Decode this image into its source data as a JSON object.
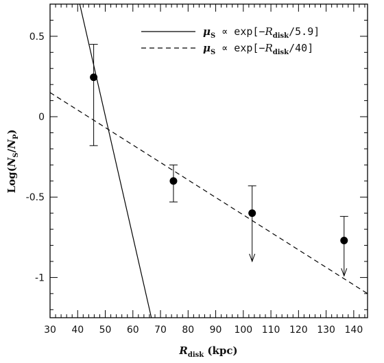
{
  "chart_data": {
    "type": "scatter",
    "xlabel": {
      "main": "R",
      "sub": "disk",
      "unit": " (kpc)"
    },
    "ylabel": {
      "pre": "Log(",
      "n1": "N",
      "s1": "S",
      "slash": "/",
      "n2": "N",
      "s2": "P",
      "post": ")"
    },
    "xlim": [
      30,
      145
    ],
    "ylim": [
      -1.25,
      0.7
    ],
    "xticks": [
      30,
      40,
      50,
      60,
      70,
      80,
      90,
      100,
      110,
      120,
      130,
      140
    ],
    "yticks": [
      0.5,
      0,
      -0.5,
      -1
    ],
    "ytick_labels": [
      "0.5",
      "0",
      "-0.5",
      "-1"
    ],
    "grid": false,
    "legend_position": "top-right",
    "points": [
      {
        "x": 45.8,
        "y": 0.245,
        "yerr_low": -0.18,
        "yerr_high": 0.45,
        "upper_limit": false
      },
      {
        "x": 74.7,
        "y": -0.4,
        "yerr_low": -0.53,
        "yerr_high": -0.3,
        "upper_limit": false
      },
      {
        "x": 103.2,
        "y": -0.6,
        "yerr_low": -0.9,
        "yerr_high": -0.43,
        "upper_limit": true
      },
      {
        "x": 136.5,
        "y": -0.77,
        "yerr_low": -0.99,
        "yerr_high": -0.62,
        "upper_limit": true
      }
    ],
    "series": [
      {
        "style": "solid",
        "x": [
          38.5,
          66.7
        ],
        "y": [
          0.87,
          -1.25
        ],
        "label": {
          "mu": "μ",
          "s": "S",
          "rel": " ∝ exp[−",
          "R": "R",
          "sub": "disk",
          "end": "/5.9]"
        }
      },
      {
        "style": "dashed",
        "x": [
          30,
          145
        ],
        "y": [
          0.15,
          -1.1
        ],
        "label": {
          "mu": "μ",
          "s": "S",
          "rel": " ∝ exp[−",
          "R": "R",
          "sub": "disk",
          "end": "/40]"
        }
      }
    ]
  }
}
